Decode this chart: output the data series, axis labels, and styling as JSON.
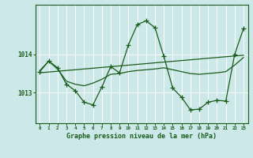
{
  "title": "Graphe pression niveau de la mer (hPa)",
  "bg_color": "#cce8e8",
  "grid_color": "#ffffff",
  "line_color": "#1a5c1a",
  "x_labels": [
    "0",
    "1",
    "2",
    "3",
    "4",
    "5",
    "6",
    "7",
    "8",
    "9",
    "10",
    "11",
    "12",
    "13",
    "14",
    "15",
    "16",
    "17",
    "18",
    "19",
    "20",
    "21",
    "22",
    "23"
  ],
  "y_ticks": [
    1013,
    1014
  ],
  "ylim": [
    1012.2,
    1015.3
  ],
  "xlim": [
    -0.5,
    23.5
  ],
  "jagged_x": [
    0,
    1,
    2,
    3,
    4,
    5,
    6,
    7,
    8,
    9,
    10,
    11,
    12,
    13,
    14,
    15,
    16,
    17,
    18,
    19,
    20,
    21,
    22,
    23
  ],
  "jagged_y": [
    1013.55,
    1013.83,
    1013.65,
    1013.22,
    1013.05,
    1012.75,
    1012.68,
    1013.15,
    1013.68,
    1013.52,
    1014.25,
    1014.78,
    1014.88,
    1014.7,
    1013.95,
    1013.12,
    1012.88,
    1012.55,
    1012.57,
    1012.75,
    1012.8,
    1012.78,
    1014.0,
    1014.68
  ],
  "smooth_x": [
    0,
    1,
    2,
    3,
    4,
    5,
    6,
    7,
    8,
    9,
    10,
    11,
    12,
    13,
    14,
    15,
    16,
    17,
    18,
    19,
    20,
    21,
    22,
    23
  ],
  "smooth_y": [
    1013.58,
    1013.82,
    1013.62,
    1013.3,
    1013.22,
    1013.18,
    1013.25,
    1013.35,
    1013.48,
    1013.5,
    1013.55,
    1013.58,
    1013.6,
    1013.62,
    1013.65,
    1013.6,
    1013.55,
    1013.5,
    1013.48,
    1013.5,
    1013.52,
    1013.55,
    1013.72,
    1013.92
  ],
  "trend_x": [
    0,
    23
  ],
  "trend_y": [
    1013.52,
    1013.98
  ]
}
